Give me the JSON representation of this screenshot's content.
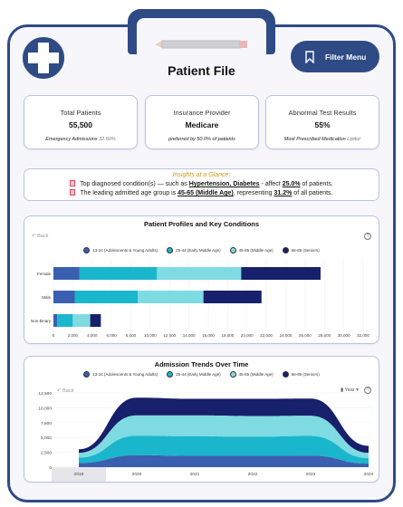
{
  "header": {
    "title": "Patient File",
    "filter_label": "Filter Menu",
    "icons": [
      "medical-cross-icon",
      "pencil-icon",
      "bookmark-icon"
    ]
  },
  "kpis": [
    {
      "label": "Total Patients",
      "value": "55,500",
      "sub_label": "Emergency Admissions",
      "sub_value": "32.50%"
    },
    {
      "label": "Insurance Provider",
      "value": "Medicare",
      "sub_label": "preferred by 50.0% of patients",
      "sub_value": ""
    },
    {
      "label": "Abnormal Test Results",
      "value": "55%",
      "sub_label": "Most Prescribed Medication",
      "sub_value": "Lipitor"
    }
  ],
  "insights": {
    "title": "Insights at a Glance:",
    "line1_a": "Top diagnosed condition(s) — such as",
    "line1_b": "Hypertension, Diabetes",
    "line1_c": "- affect",
    "line1_d": "25.0%",
    "line1_e": "of patients.",
    "line2_a": "The leading admitted age group is",
    "line2_b": "45-65 (Middle Age)",
    "line2_c": ", representing",
    "line2_d": "31.2%",
    "line2_e": "of all patients."
  },
  "colors": {
    "primary": "#2f4b86",
    "age_13_24": "#3a5fb0",
    "age_25_44": "#1ab6cc",
    "age_45_65": "#7fdbe2",
    "age_66_89": "#17206b"
  },
  "chart_data": [
    {
      "type": "bar",
      "title": "Patient Profiles and Key Conditions",
      "back_label": "Back",
      "help_label": "?",
      "orientation": "horizontal",
      "stacked": true,
      "categories": [
        "Female",
        "Male",
        "Non-binary"
      ],
      "series": [
        {
          "name": "13-24 (Adolescents & Young Adults)",
          "color": "#3a5fb0",
          "values": [
            2700,
            2200,
            400
          ]
        },
        {
          "name": "25-44 (Early Middle Age)",
          "color": "#1ab6cc",
          "values": [
            8000,
            6500,
            1600
          ]
        },
        {
          "name": "45-65 (Middle Age)",
          "color": "#7fdbe2",
          "values": [
            8700,
            6800,
            1800
          ]
        },
        {
          "name": "66-89 (Seniors)",
          "color": "#17206b",
          "values": [
            8200,
            6000,
            1100
          ]
        }
      ],
      "xlim": [
        0,
        32000
      ],
      "xticks": [
        "0",
        "2,000",
        "4,000",
        "6,000",
        "8,000",
        "10,000",
        "12,000",
        "14,000",
        "16,000",
        "18,000",
        "20,000",
        "22,000",
        "24,000",
        "26,000",
        "28,000",
        "30,000",
        "32,000"
      ],
      "legend": "top"
    },
    {
      "type": "area",
      "title": "Admission Trends Over Time",
      "back_label": "Back",
      "help_label": "?",
      "drill_label": "Year",
      "stacked": true,
      "x": [
        "2019",
        "2020",
        "2021",
        "2022",
        "2023",
        "2024"
      ],
      "series": [
        {
          "name": "13-24 (Adolescents & Young Adults)",
          "color": "#3a5fb0",
          "values": [
            700,
            2000,
            1900,
            1900,
            1950,
            600
          ]
        },
        {
          "name": "25-44 (Early Middle Age)",
          "color": "#1ab6cc",
          "values": [
            900,
            3300,
            3300,
            3200,
            3300,
            900
          ]
        },
        {
          "name": "45-65 (Middle Age)",
          "color": "#7fdbe2",
          "values": [
            800,
            3400,
            3500,
            3500,
            3400,
            900
          ]
        },
        {
          "name": "66-89 (Seniors)",
          "color": "#17206b",
          "values": [
            600,
            3000,
            2800,
            2900,
            2900,
            1200
          ]
        }
      ],
      "ylim": [
        0,
        12500
      ],
      "yticks": [
        "0",
        "2,500",
        "5,000",
        "7,500",
        "10,000",
        "12,500"
      ],
      "legend": "top"
    }
  ]
}
